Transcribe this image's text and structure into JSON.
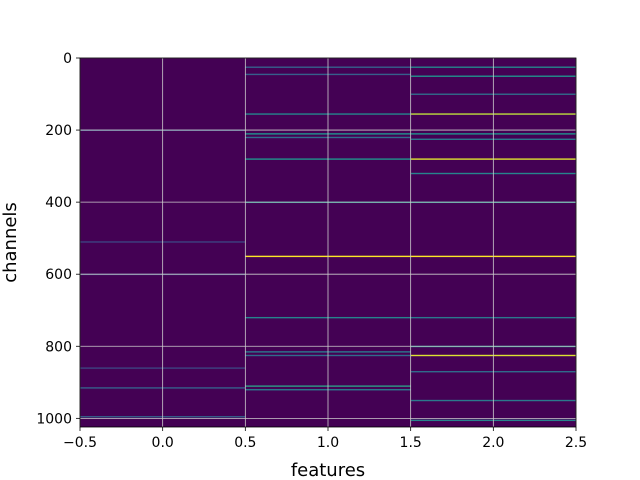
{
  "chart_data": {
    "type": "heatmap",
    "title": "",
    "xlabel": "features",
    "ylabel": "channels",
    "xlim": [
      -0.5,
      2.5
    ],
    "ylim": [
      1024,
      0
    ],
    "y_inverted": true,
    "n_rows": 1024,
    "n_cols": 3,
    "colormap": "viridis",
    "background_value_color": "#440154",
    "grid": true,
    "grid_color": "#cccccc",
    "xticks": [
      -0.5,
      0.0,
      0.5,
      1.0,
      1.5,
      2.0,
      2.5
    ],
    "xtick_labels": [
      "−0.5",
      "0.0",
      "0.5",
      "1.0",
      "1.5",
      "2.0",
      "2.5"
    ],
    "yticks": [
      0,
      200,
      400,
      600,
      800,
      1000
    ],
    "ytick_labels": [
      "0",
      "200",
      "400",
      "600",
      "800",
      "1000"
    ],
    "columns": [
      {
        "feature": 0,
        "highlights": [
          {
            "channel": 200,
            "value": 0.25
          },
          {
            "channel": 510,
            "value": 0.2
          },
          {
            "channel": 600,
            "value": 0.2
          },
          {
            "channel": 860,
            "value": 0.2
          },
          {
            "channel": 915,
            "value": 0.3
          },
          {
            "channel": 995,
            "value": 0.3
          }
        ]
      },
      {
        "feature": 1,
        "highlights": [
          {
            "channel": 25,
            "value": 0.3
          },
          {
            "channel": 45,
            "value": 0.3
          },
          {
            "channel": 155,
            "value": 0.45
          },
          {
            "channel": 210,
            "value": 0.5
          },
          {
            "channel": 220,
            "value": 0.35
          },
          {
            "channel": 280,
            "value": 0.5
          },
          {
            "channel": 400,
            "value": 0.5
          },
          {
            "channel": 550,
            "value": 1.0
          },
          {
            "channel": 720,
            "value": 0.45
          },
          {
            "channel": 815,
            "value": 0.4
          },
          {
            "channel": 825,
            "value": 0.35
          },
          {
            "channel": 910,
            "value": 0.55
          },
          {
            "channel": 920,
            "value": 0.4
          }
        ]
      },
      {
        "feature": 2,
        "highlights": [
          {
            "channel": 25,
            "value": 0.45
          },
          {
            "channel": 50,
            "value": 0.5
          },
          {
            "channel": 100,
            "value": 0.35
          },
          {
            "channel": 155,
            "value": 0.9
          },
          {
            "channel": 210,
            "value": 0.5
          },
          {
            "channel": 225,
            "value": 0.4
          },
          {
            "channel": 280,
            "value": 0.95
          },
          {
            "channel": 320,
            "value": 0.45
          },
          {
            "channel": 400,
            "value": 0.5
          },
          {
            "channel": 550,
            "value": 1.0
          },
          {
            "channel": 720,
            "value": 0.4
          },
          {
            "channel": 800,
            "value": 0.5
          },
          {
            "channel": 825,
            "value": 0.95
          },
          {
            "channel": 870,
            "value": 0.35
          },
          {
            "channel": 950,
            "value": 0.4
          },
          {
            "channel": 1005,
            "value": 0.45
          }
        ]
      }
    ]
  }
}
